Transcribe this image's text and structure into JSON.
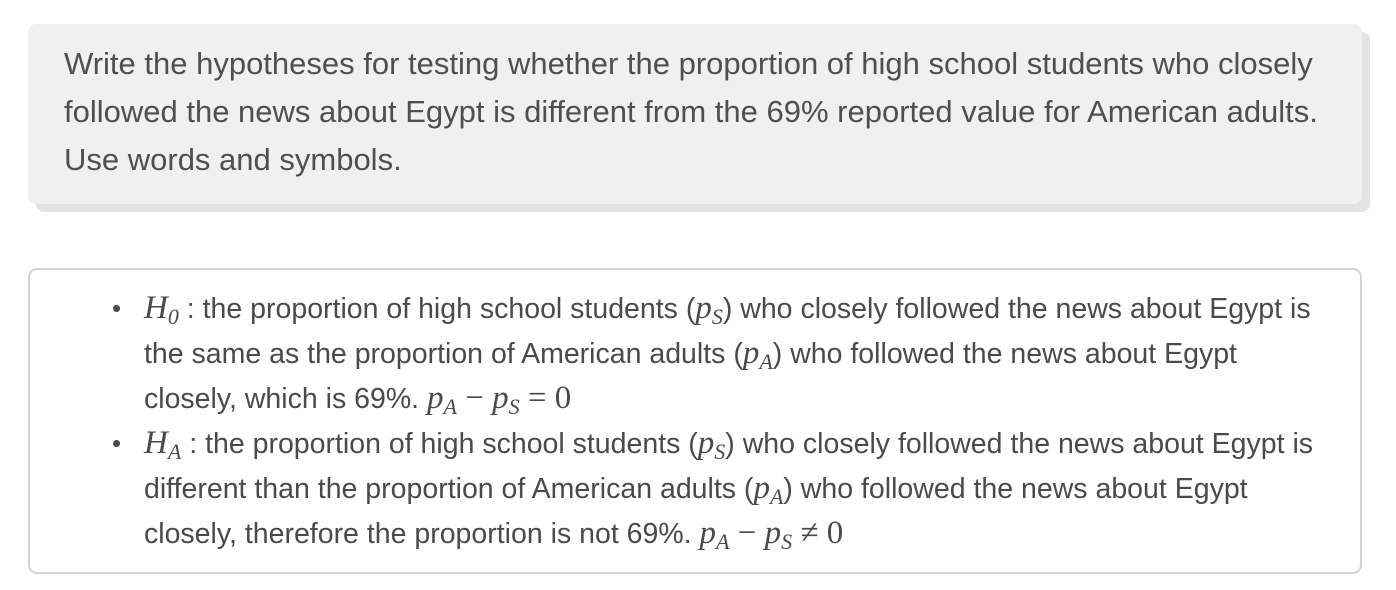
{
  "prompt": {
    "text": "Write the hypotheses for testing whether the proportion of high school students who closely followed the news about Egypt is different from the 69% reported value for American adults. Use words and symbols."
  },
  "hypotheses": [
    {
      "symbol": "H",
      "subscript": "0",
      "sep": " : ",
      "text_1": "the proportion of high school students (",
      "ps_main": "p",
      "ps_sub": "S",
      "text_2": ") who closely followed the news about Egypt is the same as the proportion of American adults (",
      "pa_main": "p",
      "pa_sub": "A",
      "text_3": ") who followed the news about Egypt closely, which is 69%. ",
      "eq_pa_main": "p",
      "eq_pa_sub": "A",
      "minus": " − ",
      "eq_ps_main": "p",
      "eq_ps_sub": "S",
      "relation": " = ",
      "rhs": "0"
    },
    {
      "symbol": "H",
      "subscript": "A",
      "sep": " : ",
      "text_1": "the proportion of high school students (",
      "ps_main": "p",
      "ps_sub": "S",
      "text_2": ") who closely followed the news about Egypt is different than the proportion of American adults (",
      "pa_main": "p",
      "pa_sub": "A",
      "text_3": ") who followed the news about Egypt closely, therefore the proportion is not 69%. ",
      "eq_pa_main": "p",
      "eq_pa_sub": "A",
      "minus": " − ",
      "eq_ps_main": "p",
      "eq_ps_sub": "S",
      "relation": " ≠ ",
      "rhs": "0"
    }
  ]
}
